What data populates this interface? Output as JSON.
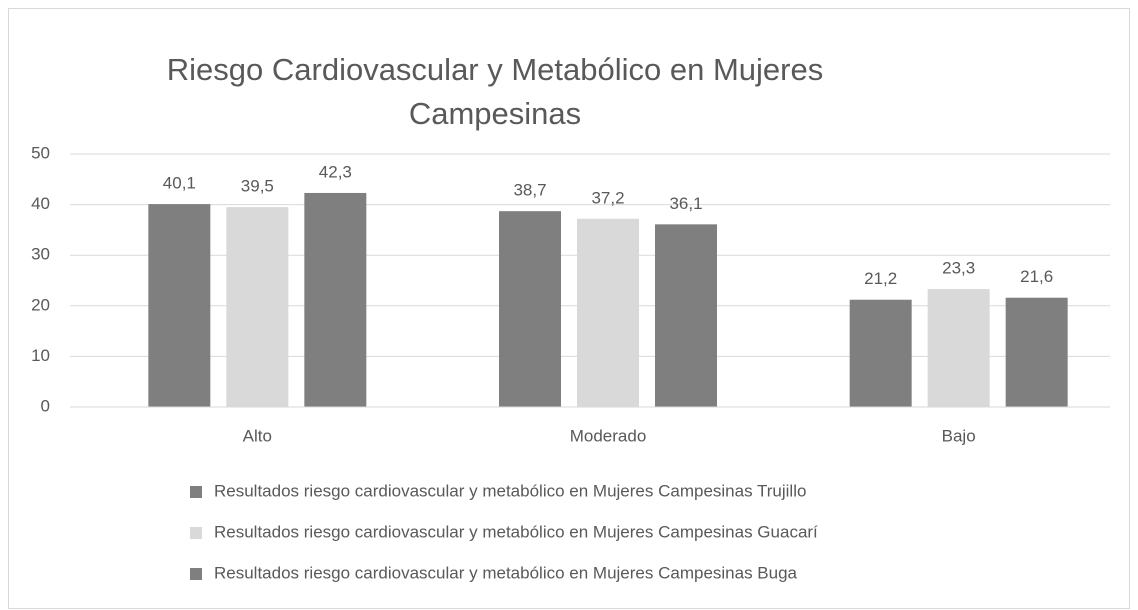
{
  "chart_data": {
    "type": "bar",
    "title": "Riesgo Cardiovascular y Metabólico en Mujeres Campesinas",
    "categories": [
      "Alto",
      "Moderado",
      "Bajo"
    ],
    "series": [
      {
        "name": "Resultados riesgo cardiovascular y metabólico en Mujeres Campesinas Trujillo",
        "color": "#7f7f7f",
        "values": [
          40.1,
          38.7,
          21.2
        ],
        "value_labels": [
          "40,1",
          "38,7",
          "21,2"
        ]
      },
      {
        "name": "Resultados riesgo cardiovascular y metabólico en Mujeres Campesinas Guacarí",
        "color": "#d9d9d9",
        "values": [
          39.5,
          37.2,
          23.3
        ],
        "value_labels": [
          "39,5",
          "37,2",
          "23,3"
        ]
      },
      {
        "name": "Resultados riesgo cardiovascular y metabólico en Mujeres Campesinas Buga",
        "color": "#7f7f7f",
        "values": [
          42.3,
          36.1,
          21.6
        ],
        "value_labels": [
          "42,3",
          "36,1",
          "21,6"
        ]
      }
    ],
    "ylim": [
      0,
      50
    ],
    "yticks": [
      0,
      10,
      20,
      30,
      40,
      50
    ],
    "grid": true,
    "legend": "bottom"
  }
}
